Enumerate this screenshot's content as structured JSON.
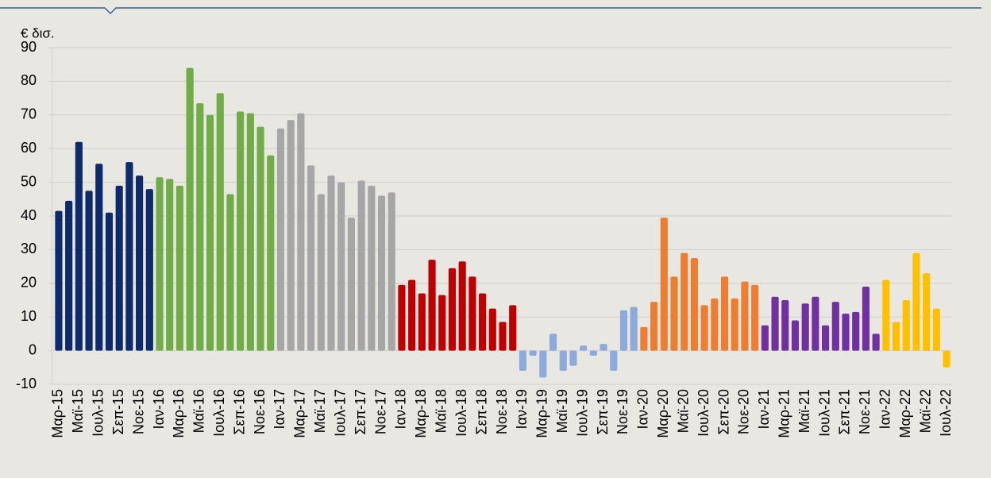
{
  "chart_data": {
    "type": "bar",
    "y_label": "€ δισ.",
    "categories": [
      "Μαρ-15",
      null,
      "Μαϊ-15",
      null,
      "Ιουλ-15",
      null,
      "Σεπ-15",
      null,
      "Νοε-15",
      null,
      "Ιαν-16",
      null,
      "Μαρ-16",
      null,
      "Μαϊ-16",
      null,
      "Ιουλ-16",
      null,
      "Σεπ-16",
      null,
      "Νοε-16",
      null,
      "Ιαν-17",
      null,
      "Μαρ-17",
      null,
      "Μαϊ-17",
      null,
      "Ιουλ-17",
      null,
      "Σεπ-17",
      null,
      "Νοε-17",
      null,
      "Ιαν-18",
      null,
      "Μαρ-18",
      null,
      "Μαϊ-18",
      null,
      "Ιουλ-18",
      null,
      "Σεπ-18",
      null,
      "Νοε-18",
      null,
      "Ιαν-19",
      null,
      "Μαρ-19",
      null,
      "Μαϊ-19",
      null,
      "Ιουλ-19",
      null,
      "Σεπ-19",
      null,
      "Νοε-19",
      null,
      "Ιαν-20",
      null,
      "Μαρ-20",
      null,
      "Μαϊ-20",
      null,
      "Ιουλ-20",
      null,
      "Σεπ-20",
      null,
      "Νοε-20",
      null,
      "Ιαν-21",
      null,
      "Μαρ-21",
      null,
      "Μαϊ-21",
      null,
      "Ιουλ-21",
      null,
      "Σεπ-21",
      null,
      "Νοε-21",
      null,
      "Ιαν-22",
      null,
      "Μαρ-22",
      null,
      "Μαϊ-22",
      null,
      "Ιουλ-22"
    ],
    "values": [
      41.5,
      44.5,
      62,
      47.5,
      55.5,
      41,
      49,
      56,
      52,
      48,
      51.5,
      51,
      49,
      84,
      73.5,
      70,
      76.5,
      46.5,
      71,
      70.5,
      66.5,
      58,
      66,
      68.5,
      70.5,
      55,
      46.5,
      52,
      50,
      39.5,
      50.5,
      49,
      46,
      47,
      19.5,
      21,
      17,
      27,
      16.5,
      24.5,
      26.5,
      22,
      17,
      12.5,
      8.5,
      13.5,
      -6,
      -1.5,
      -8,
      5,
      -6,
      -4.5,
      1.5,
      -1.5,
      2,
      -6,
      12,
      13,
      7,
      14.5,
      39.5,
      22,
      29,
      27.5,
      13.5,
      15.5,
      22,
      15.5,
      20.5,
      19.5,
      7.5,
      16,
      15,
      9,
      14,
      16,
      7.5,
      14.5,
      11,
      11.5,
      19,
      5,
      21,
      8.5,
      15,
      29,
      23,
      12.5,
      -5
    ],
    "colors": [
      "#0d2a6b",
      "#0d2a6b",
      "#0d2a6b",
      "#0d2a6b",
      "#0d2a6b",
      "#0d2a6b",
      "#0d2a6b",
      "#0d2a6b",
      "#0d2a6b",
      "#0d2a6b",
      "#70ad47",
      "#70ad47",
      "#70ad47",
      "#70ad47",
      "#70ad47",
      "#70ad47",
      "#70ad47",
      "#70ad47",
      "#70ad47",
      "#70ad47",
      "#70ad47",
      "#70ad47",
      "#a6a6a6",
      "#a6a6a6",
      "#a6a6a6",
      "#a6a6a6",
      "#a6a6a6",
      "#a6a6a6",
      "#a6a6a6",
      "#a6a6a6",
      "#a6a6a6",
      "#a6a6a6",
      "#a6a6a6",
      "#a6a6a6",
      "#c00000",
      "#c00000",
      "#c00000",
      "#c00000",
      "#c00000",
      "#c00000",
      "#c00000",
      "#c00000",
      "#c00000",
      "#c00000",
      "#c00000",
      "#c00000",
      "#8eaadb",
      "#8eaadb",
      "#8eaadb",
      "#8eaadb",
      "#8eaadb",
      "#8eaadb",
      "#8eaadb",
      "#8eaadb",
      "#8eaadb",
      "#8eaadb",
      "#8eaadb",
      "#8eaadb",
      "#ed7d31",
      "#ed7d31",
      "#ed7d31",
      "#ed7d31",
      "#ed7d31",
      "#ed7d31",
      "#ed7d31",
      "#ed7d31",
      "#ed7d31",
      "#ed7d31",
      "#ed7d31",
      "#ed7d31",
      "#7030a0",
      "#7030a0",
      "#7030a0",
      "#7030a0",
      "#7030a0",
      "#7030a0",
      "#7030a0",
      "#7030a0",
      "#7030a0",
      "#7030a0",
      "#7030a0",
      "#7030a0",
      "#ffc000",
      "#ffc000",
      "#ffc000",
      "#ffc000",
      "#ffc000",
      "#ffc000",
      "#ffc000"
    ],
    "ylim": [
      -10,
      90
    ],
    "yticks": [
      -10,
      0,
      10,
      20,
      30,
      40,
      50,
      60,
      70,
      80,
      90
    ],
    "grid": true
  }
}
